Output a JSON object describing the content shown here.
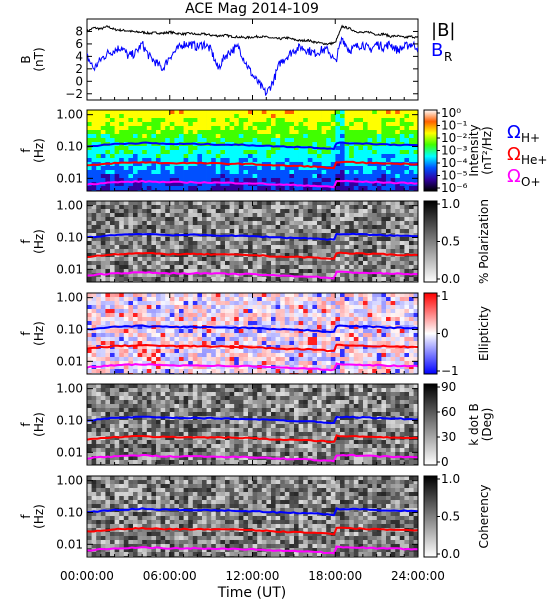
{
  "title": "ACE Mag 2014-109",
  "x_axis": {
    "label": "Time (UT)",
    "ticks": [
      "00:00:00",
      "06:00:00",
      "12:00:00",
      "18:00:00",
      "24:00:00"
    ],
    "hours": [
      0,
      6,
      12,
      18,
      24
    ]
  },
  "gyro_labels": [
    {
      "main": "Ω",
      "sub": "H+",
      "color": "#0000ff"
    },
    {
      "main": "Ω",
      "sub": "He+",
      "color": "#ff0000"
    },
    {
      "main": "Ω",
      "sub": "O+",
      "color": "#ff00ff"
    }
  ],
  "colors": {
    "b_total": "#000000",
    "b_r": "#0000ff",
    "h_gyro": "#0000ff",
    "he_gyro": "#ff0000",
    "o_gyro": "#ff00ff"
  },
  "chart_data": [
    {
      "type": "line",
      "ylabel": "B",
      "yunit": "(nT)",
      "yticks": [
        8,
        6,
        4,
        2,
        0,
        -2
      ],
      "ylim": [
        -3,
        10
      ],
      "series": [
        {
          "name": "|B|",
          "sub": "",
          "color": "#000000",
          "x": [
            0,
            0.5,
            1,
            1.5,
            2,
            2.5,
            3,
            3.5,
            4,
            4.5,
            5,
            5.5,
            6,
            6.5,
            7,
            7.5,
            8,
            8.5,
            9,
            9.5,
            10,
            10.5,
            11,
            11.5,
            12,
            12.5,
            13,
            13.5,
            14,
            14.5,
            15,
            15.5,
            16,
            16.5,
            17,
            17.5,
            18,
            18.5,
            19,
            19.5,
            20,
            20.5,
            21,
            21.5,
            22,
            22.5,
            23,
            23.5,
            24
          ],
          "y": [
            8,
            8.6,
            8.4,
            8.8,
            8.3,
            8.2,
            8.1,
            7.9,
            7.9,
            7.7,
            7.8,
            7.7,
            7.9,
            7.7,
            7.6,
            7.7,
            7.5,
            7.6,
            7.4,
            7.3,
            7.4,
            7.2,
            7.1,
            7,
            7.1,
            7.2,
            7.1,
            6.9,
            6.8,
            7,
            6.7,
            6.5,
            6.6,
            6.3,
            6.1,
            6,
            6.2,
            8.8,
            8.5,
            8,
            7.8,
            7.9,
            7.5,
            7.6,
            7.2,
            7.3,
            7,
            7.2,
            7
          ]
        },
        {
          "name": "B",
          "sub": "R",
          "color": "#0000ff",
          "x": [
            0,
            0.5,
            1,
            1.5,
            2,
            2.5,
            3,
            3.5,
            4,
            4.5,
            5,
            5.5,
            6,
            6.5,
            7,
            7.5,
            8,
            8.5,
            9,
            9.5,
            10,
            10.5,
            11,
            11.5,
            12,
            12.5,
            13,
            13.5,
            14,
            14.5,
            15,
            15.5,
            16,
            16.5,
            17,
            17.5,
            18,
            18.5,
            19,
            19.5,
            20,
            20.5,
            21,
            21.5,
            22,
            22.5,
            23,
            23.5,
            24
          ],
          "y": [
            4,
            2,
            3.5,
            4.5,
            5,
            5.5,
            4,
            4.5,
            6,
            4,
            3,
            2,
            4,
            5,
            6,
            6,
            5.5,
            6,
            5,
            2,
            4,
            5,
            5.5,
            3,
            1,
            -0.5,
            -2,
            0,
            3,
            4,
            5,
            5.5,
            5,
            4.5,
            5,
            5,
            3,
            7,
            5,
            5.5,
            6,
            5,
            6,
            5.5,
            6,
            5,
            5.5,
            6,
            5.5
          ]
        }
      ]
    },
    {
      "type": "heatmap",
      "ylabel": "f",
      "yunit": "(Hz)",
      "yticks": [
        "1.00",
        "0.10",
        "0.01"
      ],
      "colorbar": {
        "label_main": "Intensity",
        "label_unit": "(nT²/Hz)",
        "ticks": [
          "10⁰",
          "10⁻¹",
          "10⁻²",
          "10⁻³",
          "10⁻⁴",
          "10⁻⁵",
          "10⁻⁶"
        ],
        "palette": "rainbow"
      }
    },
    {
      "type": "heatmap",
      "ylabel": "f",
      "yunit": "(Hz)",
      "yticks": [
        "1.00",
        "0.10",
        "0.01"
      ],
      "colorbar": {
        "label_main": "% Polarization",
        "label_unit": "",
        "ticks": [
          "1.0",
          "0.5",
          "0.0"
        ],
        "palette": "gray"
      }
    },
    {
      "type": "heatmap",
      "ylabel": "f",
      "yunit": "(Hz)",
      "yticks": [
        "1.00",
        "0.10",
        "0.01"
      ],
      "colorbar": {
        "label_main": "Ellipticity",
        "label_unit": "",
        "ticks": [
          "1",
          "0",
          "−1"
        ],
        "palette": "redblue"
      }
    },
    {
      "type": "heatmap",
      "ylabel": "f",
      "yunit": "(Hz)",
      "yticks": [
        "1.00",
        "0.10",
        "0.01"
      ],
      "colorbar": {
        "label_main": "k dot B",
        "label_unit": "(Deg)",
        "ticks": [
          "90",
          "60",
          "30",
          "0"
        ],
        "palette": "gray"
      }
    },
    {
      "type": "heatmap",
      "ylabel": "f",
      "yunit": "(Hz)",
      "yticks": [
        "1.00",
        "0.10",
        "0.01"
      ],
      "colorbar": {
        "label_main": "Coherency",
        "label_unit": "",
        "ticks": [
          "1.0",
          "0.5",
          "0.0"
        ],
        "palette": "gray"
      }
    }
  ],
  "gyro_lines": [
    {
      "name": "H+",
      "color": "#0000ff",
      "x": [
        0,
        2,
        4,
        6,
        8,
        10,
        12,
        14,
        16,
        17.9,
        18.1,
        20,
        22,
        24
      ],
      "f": [
        0.1,
        0.12,
        0.13,
        0.12,
        0.12,
        0.115,
        0.11,
        0.1,
        0.095,
        0.085,
        0.13,
        0.125,
        0.115,
        0.11
      ]
    },
    {
      "name": "He+",
      "color": "#ff0000",
      "x": [
        0,
        2,
        4,
        6,
        8,
        10,
        12,
        14,
        16,
        17.9,
        18.1,
        20,
        22,
        24
      ],
      "f": [
        0.025,
        0.03,
        0.032,
        0.03,
        0.03,
        0.029,
        0.028,
        0.025,
        0.024,
        0.021,
        0.033,
        0.031,
        0.029,
        0.028
      ]
    },
    {
      "name": "O+",
      "color": "#ff00ff",
      "x": [
        0,
        2,
        4,
        6,
        8,
        10,
        12,
        14,
        16,
        17.9,
        18.1,
        20,
        22,
        24
      ],
      "f": [
        0.0065,
        0.0075,
        0.008,
        0.0075,
        0.0075,
        0.0072,
        0.007,
        0.0063,
        0.006,
        0.0053,
        0.0083,
        0.0078,
        0.0073,
        0.007
      ]
    }
  ]
}
